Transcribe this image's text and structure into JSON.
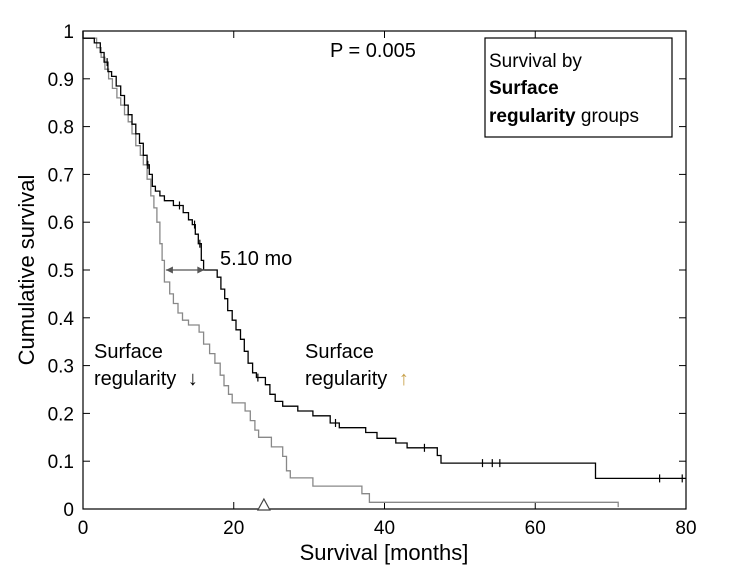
{
  "chart_data": {
    "type": "line",
    "subtype": "kaplan-meier",
    "xlabel": "Survival [months]",
    "ylabel": "Cumulative survival",
    "xlim": [
      0,
      80
    ],
    "ylim": [
      0,
      1
    ],
    "x_ticks": [
      0,
      20,
      40,
      60,
      80
    ],
    "y_ticks": [
      0,
      0.1,
      0.2,
      0.3,
      0.4,
      0.5,
      0.6,
      0.7,
      0.8,
      0.9,
      1
    ],
    "x_tick_labels": [
      "0",
      "20",
      "40",
      "60",
      "80"
    ],
    "y_tick_labels": [
      "0",
      "0.1",
      "0.2",
      "0.3",
      "0.4",
      "0.5",
      "0.6",
      "0.7",
      "0.8",
      "0.9",
      "1"
    ],
    "p_value_text": "P = 0.005",
    "legend": {
      "line1": "Survival by",
      "line2": "Surface",
      "line3_bold": "regularity",
      "line3_rest": " groups"
    },
    "median_gap_label": "5.10 mo",
    "median_gap": {
      "y": 0.5,
      "x_start": 11,
      "x_end": 16.1
    },
    "series": [
      {
        "name": "Surface regularity high",
        "label_line1": "Surface",
        "label_line2": "regularity",
        "arrow": "↑",
        "color": "#000000",
        "arrow_color": "#c8a14a",
        "points": [
          [
            0,
            1
          ],
          [
            0,
            0.985
          ],
          [
            1.5,
            0.985
          ],
          [
            1.5,
            0.975
          ],
          [
            2.3,
            0.975
          ],
          [
            2.3,
            0.955
          ],
          [
            2.8,
            0.955
          ],
          [
            2.8,
            0.935
          ],
          [
            3.3,
            0.935
          ],
          [
            3.3,
            0.915
          ],
          [
            3.8,
            0.915
          ],
          [
            3.8,
            0.905
          ],
          [
            4.4,
            0.905
          ],
          [
            4.4,
            0.885
          ],
          [
            5,
            0.885
          ],
          [
            5,
            0.865
          ],
          [
            5.5,
            0.865
          ],
          [
            5.5,
            0.845
          ],
          [
            6,
            0.845
          ],
          [
            6,
            0.825
          ],
          [
            6.5,
            0.825
          ],
          [
            6.5,
            0.805
          ],
          [
            7,
            0.805
          ],
          [
            7,
            0.785
          ],
          [
            7.5,
            0.785
          ],
          [
            7.5,
            0.765
          ],
          [
            8,
            0.765
          ],
          [
            8,
            0.74
          ],
          [
            8.5,
            0.74
          ],
          [
            8.5,
            0.72
          ],
          [
            8.8,
            0.72
          ],
          [
            8.8,
            0.7
          ],
          [
            9.2,
            0.7
          ],
          [
            9.2,
            0.675
          ],
          [
            9.6,
            0.675
          ],
          [
            9.6,
            0.665
          ],
          [
            10.2,
            0.665
          ],
          [
            10.2,
            0.655
          ],
          [
            10.8,
            0.655
          ],
          [
            10.8,
            0.645
          ],
          [
            12,
            0.645
          ],
          [
            12,
            0.635
          ],
          [
            13.3,
            0.635
          ],
          [
            13.3,
            0.62
          ],
          [
            14,
            0.62
          ],
          [
            14,
            0.605
          ],
          [
            14.5,
            0.605
          ],
          [
            14.5,
            0.595
          ],
          [
            14.9,
            0.595
          ],
          [
            14.9,
            0.575
          ],
          [
            15.3,
            0.575
          ],
          [
            15.3,
            0.555
          ],
          [
            15.7,
            0.555
          ],
          [
            15.7,
            0.52
          ],
          [
            16,
            0.52
          ],
          [
            16,
            0.5
          ],
          [
            17.8,
            0.5
          ],
          [
            17.8,
            0.485
          ],
          [
            18.3,
            0.485
          ],
          [
            18.3,
            0.46
          ],
          [
            18.8,
            0.46
          ],
          [
            18.8,
            0.44
          ],
          [
            19.2,
            0.44
          ],
          [
            19.2,
            0.415
          ],
          [
            19.8,
            0.415
          ],
          [
            19.8,
            0.395
          ],
          [
            20.3,
            0.395
          ],
          [
            20.3,
            0.375
          ],
          [
            20.9,
            0.375
          ],
          [
            20.9,
            0.355
          ],
          [
            21.4,
            0.355
          ],
          [
            21.4,
            0.33
          ],
          [
            21.9,
            0.33
          ],
          [
            21.9,
            0.305
          ],
          [
            22.5,
            0.305
          ],
          [
            22.5,
            0.285
          ],
          [
            23,
            0.285
          ],
          [
            23,
            0.275
          ],
          [
            24.2,
            0.275
          ],
          [
            24.2,
            0.26
          ],
          [
            24.8,
            0.26
          ],
          [
            24.8,
            0.24
          ],
          [
            25.5,
            0.24
          ],
          [
            25.5,
            0.225
          ],
          [
            26.5,
            0.225
          ],
          [
            26.5,
            0.215
          ],
          [
            28.5,
            0.215
          ],
          [
            28.5,
            0.205
          ],
          [
            30.5,
            0.205
          ],
          [
            30.5,
            0.195
          ],
          [
            32.8,
            0.195
          ],
          [
            32.8,
            0.18
          ],
          [
            34,
            0.18
          ],
          [
            34,
            0.17
          ],
          [
            37.5,
            0.17
          ],
          [
            37.5,
            0.16
          ],
          [
            39,
            0.16
          ],
          [
            39,
            0.148
          ],
          [
            41.5,
            0.148
          ],
          [
            41.5,
            0.138
          ],
          [
            43,
            0.138
          ],
          [
            43,
            0.128
          ],
          [
            47,
            0.128
          ],
          [
            47,
            0.112
          ],
          [
            47.5,
            0.112
          ],
          [
            47.5,
            0.096
          ],
          [
            68,
            0.096
          ],
          [
            68,
            0.064
          ],
          [
            80,
            0.064
          ]
        ],
        "censor_x": [
          3.2,
          8.6,
          12.8,
          14.8,
          15.5,
          23.2,
          33.5,
          45.3,
          53,
          54.3,
          55.3,
          76.5,
          79.5
        ]
      },
      {
        "name": "Surface regularity low",
        "label_line1": "Surface",
        "label_line2": "regularity",
        "arrow": "↓",
        "color": "#888888",
        "arrow_color": "#000000",
        "points": [
          [
            0,
            1
          ],
          [
            0,
            0.985
          ],
          [
            1.8,
            0.985
          ],
          [
            1.8,
            0.965
          ],
          [
            2.4,
            0.965
          ],
          [
            2.4,
            0.945
          ],
          [
            2.9,
            0.945
          ],
          [
            2.9,
            0.92
          ],
          [
            3.4,
            0.92
          ],
          [
            3.4,
            0.9
          ],
          [
            3.9,
            0.9
          ],
          [
            3.9,
            0.88
          ],
          [
            4.5,
            0.88
          ],
          [
            4.5,
            0.86
          ],
          [
            5,
            0.86
          ],
          [
            5,
            0.845
          ],
          [
            5.5,
            0.845
          ],
          [
            5.5,
            0.825
          ],
          [
            6,
            0.825
          ],
          [
            6,
            0.81
          ],
          [
            6.5,
            0.81
          ],
          [
            6.5,
            0.785
          ],
          [
            7,
            0.785
          ],
          [
            7,
            0.76
          ],
          [
            7.6,
            0.76
          ],
          [
            7.6,
            0.74
          ],
          [
            8,
            0.74
          ],
          [
            8,
            0.72
          ],
          [
            8.5,
            0.72
          ],
          [
            8.5,
            0.69
          ],
          [
            9,
            0.69
          ],
          [
            9,
            0.655
          ],
          [
            9.4,
            0.655
          ],
          [
            9.4,
            0.63
          ],
          [
            9.8,
            0.63
          ],
          [
            9.8,
            0.6
          ],
          [
            10.2,
            0.6
          ],
          [
            10.2,
            0.555
          ],
          [
            10.5,
            0.555
          ],
          [
            10.5,
            0.52
          ],
          [
            10.8,
            0.52
          ],
          [
            10.8,
            0.475
          ],
          [
            11.5,
            0.475
          ],
          [
            11.5,
            0.45
          ],
          [
            12,
            0.45
          ],
          [
            12,
            0.43
          ],
          [
            12.6,
            0.43
          ],
          [
            12.6,
            0.41
          ],
          [
            13.2,
            0.41
          ],
          [
            13.2,
            0.395
          ],
          [
            14,
            0.395
          ],
          [
            14,
            0.385
          ],
          [
            15.4,
            0.385
          ],
          [
            15.4,
            0.37
          ],
          [
            16,
            0.37
          ],
          [
            16,
            0.345
          ],
          [
            16.8,
            0.345
          ],
          [
            16.8,
            0.325
          ],
          [
            17.5,
            0.325
          ],
          [
            17.5,
            0.305
          ],
          [
            18.2,
            0.305
          ],
          [
            18.2,
            0.28
          ],
          [
            18.7,
            0.28
          ],
          [
            18.7,
            0.258
          ],
          [
            19.3,
            0.258
          ],
          [
            19.3,
            0.24
          ],
          [
            19.8,
            0.24
          ],
          [
            19.8,
            0.222
          ],
          [
            21.5,
            0.222
          ],
          [
            21.5,
            0.205
          ],
          [
            22.2,
            0.205
          ],
          [
            22.2,
            0.185
          ],
          [
            22.8,
            0.185
          ],
          [
            22.8,
            0.165
          ],
          [
            23.3,
            0.165
          ],
          [
            23.3,
            0.15
          ],
          [
            25,
            0.15
          ],
          [
            25,
            0.13
          ],
          [
            26.5,
            0.13
          ],
          [
            26.5,
            0.11
          ],
          [
            27,
            0.11
          ],
          [
            27,
            0.08
          ],
          [
            27.5,
            0.08
          ],
          [
            27.5,
            0.065
          ],
          [
            30.5,
            0.065
          ],
          [
            30.5,
            0.048
          ],
          [
            37,
            0.048
          ],
          [
            37,
            0.032
          ],
          [
            38,
            0.032
          ],
          [
            38,
            0.014
          ],
          [
            71,
            0.014
          ],
          [
            71,
            0.004
          ]
        ],
        "censor_x": []
      }
    ],
    "triangle_marker_x": 24
  }
}
